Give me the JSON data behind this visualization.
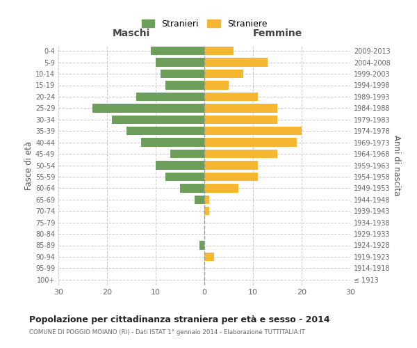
{
  "age_groups": [
    "100+",
    "95-99",
    "90-94",
    "85-89",
    "80-84",
    "75-79",
    "70-74",
    "65-69",
    "60-64",
    "55-59",
    "50-54",
    "45-49",
    "40-44",
    "35-39",
    "30-34",
    "25-29",
    "20-24",
    "15-19",
    "10-14",
    "5-9",
    "0-4"
  ],
  "birth_years": [
    "≤ 1913",
    "1914-1918",
    "1919-1923",
    "1924-1928",
    "1929-1933",
    "1934-1938",
    "1939-1943",
    "1944-1948",
    "1949-1953",
    "1954-1958",
    "1959-1963",
    "1964-1968",
    "1969-1973",
    "1974-1978",
    "1979-1983",
    "1984-1988",
    "1989-1993",
    "1994-1998",
    "1999-2003",
    "2004-2008",
    "2009-2013"
  ],
  "maschi": [
    0,
    0,
    0,
    1,
    0,
    0,
    0,
    2,
    5,
    8,
    10,
    7,
    13,
    16,
    19,
    23,
    14,
    8,
    9,
    10,
    11
  ],
  "femmine": [
    0,
    0,
    2,
    0,
    0,
    0,
    1,
    1,
    7,
    11,
    11,
    15,
    19,
    20,
    15,
    15,
    11,
    5,
    8,
    13,
    6
  ],
  "male_color": "#6d9e5a",
  "female_color": "#f5b731",
  "center_line_color": "#999999",
  "grid_color": "#cccccc",
  "title": "Popolazione per cittadinanza straniera per età e sesso - 2014",
  "subtitle": "COMUNE DI POGGIO MOIANO (RI) - Dati ISTAT 1° gennaio 2014 - Elaborazione TUTTITALIA.IT",
  "left_label": "Maschi",
  "right_label": "Femmine",
  "ylabel_left": "Fasce di età",
  "ylabel_right": "Anni di nascita",
  "legend_male": "Stranieri",
  "legend_female": "Straniere",
  "xlim": 30,
  "background_color": "#ffffff",
  "bar_height": 0.75
}
